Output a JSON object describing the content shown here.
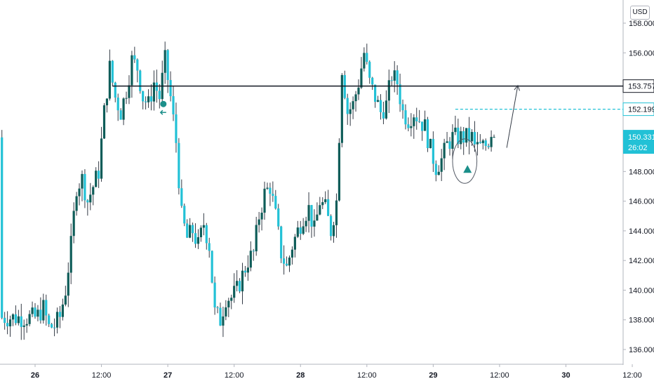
{
  "currency": "USD",
  "colors": {
    "up": "#26a69a",
    "up_body": "#0f5d59",
    "down": "#22c1d6",
    "wick": "#333a45",
    "resistance": "#131722",
    "target_line": "#22c1d6",
    "last_price_bg": "#22c1d6"
  },
  "chart_data": {
    "type": "candlestick",
    "y_ticks": [
      "136.000",
      "138.000",
      "140.000",
      "142.000",
      "144.000",
      "146.000",
      "148.000",
      "150.000",
      "152.000",
      "154.000",
      "156.000",
      "158.000"
    ],
    "ylim": [
      135.0,
      158.4
    ],
    "x_ticks": [
      {
        "label": "26",
        "time": 0,
        "bold": true
      },
      {
        "label": "12:00",
        "time": 12
      },
      {
        "label": "27",
        "time": 24,
        "bold": true
      },
      {
        "label": "12:00",
        "time": 36
      },
      {
        "label": "28",
        "time": 48,
        "bold": true
      },
      {
        "label": "12:00",
        "time": 60
      },
      {
        "label": "29",
        "time": 72,
        "bold": true
      },
      {
        "label": "12:00",
        "time": 84
      },
      {
        "label": "30",
        "time": 96,
        "bold": true
      },
      {
        "label": "12:00",
        "time": 108
      }
    ],
    "price_levels": [
      {
        "label": "153.757",
        "value": 153.757,
        "style": "solid-black"
      },
      {
        "label": "152.199",
        "value": 152.199,
        "style": "dashed-teal"
      }
    ],
    "last_price": {
      "label": "150.331",
      "value": 150.331,
      "countdown": "26:02"
    },
    "anchors": [
      [
        0,
        138
      ],
      [
        1,
        138.3
      ],
      [
        2,
        138.8
      ],
      [
        3,
        137.5
      ],
      [
        4,
        137.6
      ],
      [
        5,
        138.2
      ],
      [
        6,
        140
      ],
      [
        7,
        143
      ],
      [
        8,
        147
      ],
      [
        9,
        147.5
      ],
      [
        10,
        146
      ],
      [
        11,
        147
      ],
      [
        12,
        148
      ],
      [
        13,
        152
      ],
      [
        14,
        155
      ],
      [
        15,
        153
      ],
      [
        16,
        152
      ],
      [
        17,
        153.5
      ],
      [
        18,
        155.5
      ],
      [
        19,
        155
      ],
      [
        20,
        153
      ],
      [
        21,
        152.5
      ],
      [
        22,
        154
      ],
      [
        23,
        153
      ],
      [
        24,
        155.5
      ],
      [
        25,
        153
      ],
      [
        26,
        150
      ],
      [
        27,
        145
      ],
      [
        28,
        143.5
      ],
      [
        29,
        144
      ],
      [
        30,
        143
      ],
      [
        31,
        144.5
      ],
      [
        32,
        143
      ],
      [
        33,
        138.5
      ],
      [
        34,
        138
      ],
      [
        35,
        139.5
      ],
      [
        36,
        139.5
      ],
      [
        37,
        140
      ],
      [
        38,
        141
      ],
      [
        39,
        142
      ],
      [
        40,
        142.5
      ],
      [
        41,
        145
      ],
      [
        42,
        146.5
      ],
      [
        43,
        147
      ],
      [
        44,
        145
      ],
      [
        45,
        142.5
      ],
      [
        46,
        141.5
      ],
      [
        47,
        143
      ],
      [
        48,
        144
      ],
      [
        49,
        145
      ],
      [
        50,
        145.5
      ],
      [
        51,
        144
      ],
      [
        52,
        146
      ],
      [
        53,
        145.5
      ],
      [
        54,
        144
      ],
      [
        55,
        146
      ],
      [
        56,
        155
      ],
      [
        57,
        152
      ],
      [
        58,
        152.5
      ],
      [
        59,
        154
      ],
      [
        60,
        156
      ],
      [
        61,
        154
      ],
      [
        62,
        153
      ],
      [
        63,
        152
      ],
      [
        64,
        152.5
      ],
      [
        65,
        154.5
      ],
      [
        66,
        154
      ],
      [
        67,
        152
      ],
      [
        68,
        151.5
      ],
      [
        69,
        152
      ],
      [
        70,
        151.5
      ],
      [
        71,
        151
      ],
      [
        72,
        149.5
      ],
      [
        73,
        148.3
      ],
      [
        74,
        148.8
      ],
      [
        75,
        149.8
      ],
      [
        76,
        150.3
      ]
    ],
    "annotations": {
      "arrow": {
        "from": [
          85.3,
          149.6
        ],
        "to": [
          87.3,
          153.8
        ]
      },
      "circle": {
        "center": [
          77.7,
          148.7
        ],
        "r_time": 2.2,
        "r_price": 1.5
      }
    }
  }
}
